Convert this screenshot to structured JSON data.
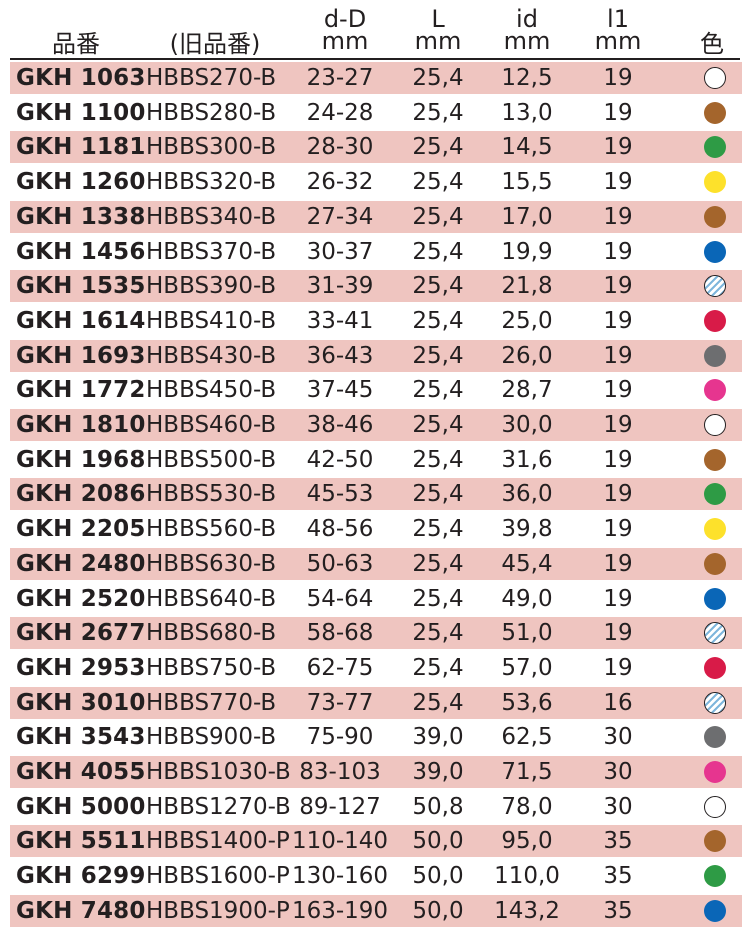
{
  "headers": {
    "code": "品番",
    "old_code": "(旧品番)",
    "dD": [
      "d-D",
      "mm"
    ],
    "L": [
      "L",
      "mm"
    ],
    "id": [
      "id",
      "mm"
    ],
    "l1": [
      "l1",
      "mm"
    ],
    "color": "色"
  },
  "rows": [
    {
      "code": "GKH 1063",
      "old": "HBBS270-B",
      "dD": "23-27",
      "L": "25,4",
      "id": "12,5",
      "l1": "19",
      "color": "white"
    },
    {
      "code": "GKH 1100",
      "old": "HBBS280-B",
      "dD": "24-28",
      "L": "25,4",
      "id": "13,0",
      "l1": "19",
      "color": "brown"
    },
    {
      "code": "GKH 1181",
      "old": "HBBS300-B",
      "dD": "28-30",
      "L": "25,4",
      "id": "14,5",
      "l1": "19",
      "color": "green"
    },
    {
      "code": "GKH 1260",
      "old": "HBBS320-B",
      "dD": "26-32",
      "L": "25,4",
      "id": "15,5",
      "l1": "19",
      "color": "yellow"
    },
    {
      "code": "GKH 1338",
      "old": "HBBS340-B",
      "dD": "27-34",
      "L": "25,4",
      "id": "17,0",
      "l1": "19",
      "color": "brown"
    },
    {
      "code": "GKH 1456",
      "old": "HBBS370-B",
      "dD": "30-37",
      "L": "25,4",
      "id": "19,9",
      "l1": "19",
      "color": "blue"
    },
    {
      "code": "GKH 1535",
      "old": "HBBS390-B",
      "dD": "31-39",
      "L": "25,4",
      "id": "21,8",
      "l1": "19",
      "color": "clear"
    },
    {
      "code": "GKH 1614",
      "old": "HBBS410-B",
      "dD": "33-41",
      "L": "25,4",
      "id": "25,0",
      "l1": "19",
      "color": "red"
    },
    {
      "code": "GKH 1693",
      "old": "HBBS430-B",
      "dD": "36-43",
      "L": "25,4",
      "id": "26,0",
      "l1": "19",
      "color": "grey"
    },
    {
      "code": "GKH 1772",
      "old": "HBBS450-B",
      "dD": "37-45",
      "L": "25,4",
      "id": "28,7",
      "l1": "19",
      "color": "pink"
    },
    {
      "code": "GKH 1810",
      "old": "HBBS460-B",
      "dD": "38-46",
      "L": "25,4",
      "id": "30,0",
      "l1": "19",
      "color": "white"
    },
    {
      "code": "GKH 1968",
      "old": "HBBS500-B",
      "dD": "42-50",
      "L": "25,4",
      "id": "31,6",
      "l1": "19",
      "color": "brown"
    },
    {
      "code": "GKH 2086",
      "old": "HBBS530-B",
      "dD": "45-53",
      "L": "25,4",
      "id": "36,0",
      "l1": "19",
      "color": "green"
    },
    {
      "code": "GKH 2205",
      "old": "HBBS560-B",
      "dD": "48-56",
      "L": "25,4",
      "id": "39,8",
      "l1": "19",
      "color": "yellow"
    },
    {
      "code": "GKH 2480",
      "old": "HBBS630-B",
      "dD": "50-63",
      "L": "25,4",
      "id": "45,4",
      "l1": "19",
      "color": "brown"
    },
    {
      "code": "GKH 2520",
      "old": "HBBS640-B",
      "dD": "54-64",
      "L": "25,4",
      "id": "49,0",
      "l1": "19",
      "color": "blue"
    },
    {
      "code": "GKH 2677",
      "old": "HBBS680-B",
      "dD": "58-68",
      "L": "25,4",
      "id": "51,0",
      "l1": "19",
      "color": "clear"
    },
    {
      "code": "GKH 2953",
      "old": "HBBS750-B",
      "dD": "62-75",
      "L": "25,4",
      "id": "57,0",
      "l1": "19",
      "color": "red"
    },
    {
      "code": "GKH 3010",
      "old": "HBBS770-B",
      "dD": "73-77",
      "L": "25,4",
      "id": "53,6",
      "l1": "16",
      "color": "clear"
    },
    {
      "code": "GKH 3543",
      "old": "HBBS900-B",
      "dD": "75-90",
      "L": "39,0",
      "id": "62,5",
      "l1": "30",
      "color": "grey"
    },
    {
      "code": "GKH 4055",
      "old": "HBBS1030-B",
      "dD": "83-103",
      "L": "39,0",
      "id": "71,5",
      "l1": "30",
      "color": "pink"
    },
    {
      "code": "GKH 5000",
      "old": "HBBS1270-B",
      "dD": "89-127",
      "L": "50,8",
      "id": "78,0",
      "l1": "30",
      "color": "white"
    },
    {
      "code": "GKH 5511",
      "old": "HBBS1400-P",
      "dD": "110-140",
      "L": "50,0",
      "id": "95,0",
      "l1": "35",
      "color": "brown"
    },
    {
      "code": "GKH 6299",
      "old": "HBBS1600-P",
      "dD": "130-160",
      "L": "50,0",
      "id": "110,0",
      "l1": "35",
      "color": "green"
    },
    {
      "code": "GKH 7480",
      "old": "HBBS1900-P",
      "dD": "163-190",
      "L": "50,0",
      "id": "143,2",
      "l1": "35",
      "color": "blue"
    }
  ]
}
